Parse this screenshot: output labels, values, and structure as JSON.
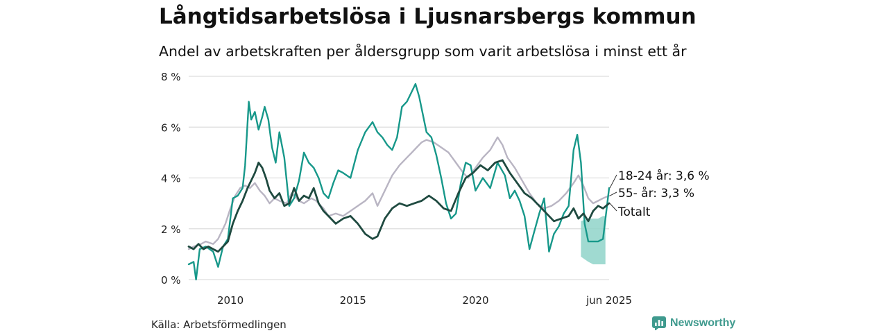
{
  "title": "Långtidsarbetslösa i Ljusnarsbergs kommun",
  "subtitle": "Andel av arbetskraften per åldersgrupp som varit arbetslösa i minst ett år",
  "source": "Källa: Arbetsförmedlingen",
  "brand": {
    "name": "Newsworthy"
  },
  "colors": {
    "youth": "#17988a",
    "total": "#1f4a40",
    "older": "#b9b5c3",
    "band": "#8fd3c9",
    "grid": "#dddddd"
  },
  "chart_data": {
    "type": "line",
    "xlim": [
      2008.3,
      2025.45
    ],
    "ylim": [
      0,
      8
    ],
    "y_ticks": [
      0,
      2,
      4,
      6,
      8
    ],
    "y_tick_labels": [
      "0 %",
      "2 %",
      "4 %",
      "6 %",
      "8 %"
    ],
    "x_ticks": [
      2010,
      2015,
      2020,
      2025.45
    ],
    "x_tick_labels": [
      "2010",
      "2015",
      "2020",
      "jun 2025"
    ],
    "grid": true,
    "series": [
      {
        "key": "older",
        "end_label": "55- år: 3,3 %",
        "x": [
          2008.3,
          2008.5,
          2008.8,
          2009.0,
          2009.3,
          2009.5,
          2009.8,
          2010.0,
          2010.2,
          2010.4,
          2010.6,
          2010.8,
          2011.0,
          2011.2,
          2011.4,
          2011.6,
          2011.8,
          2012.0,
          2012.3,
          2012.5,
          2012.8,
          2013.0,
          2013.3,
          2013.5,
          2013.8,
          2014.0,
          2014.3,
          2014.6,
          2014.9,
          2015.2,
          2015.5,
          2015.8,
          2016.0,
          2016.3,
          2016.6,
          2016.9,
          2017.2,
          2017.4,
          2017.6,
          2017.8,
          2018.0,
          2018.3,
          2018.6,
          2018.9,
          2019.2,
          2019.5,
          2019.7,
          2020.0,
          2020.3,
          2020.6,
          2020.9,
          2021.1,
          2021.3,
          2021.6,
          2021.9,
          2022.2,
          2022.5,
          2022.8,
          2023.1,
          2023.4,
          2023.7,
          2024.0,
          2024.2,
          2024.4,
          2024.6,
          2024.8,
          2025.0,
          2025.2,
          2025.45
        ],
        "y": [
          1.2,
          1.3,
          1.4,
          1.5,
          1.4,
          1.6,
          2.2,
          2.8,
          3.3,
          3.6,
          3.7,
          3.6,
          3.8,
          3.5,
          3.3,
          3.0,
          3.2,
          3.1,
          3.0,
          3.4,
          3.1,
          3.0,
          3.2,
          3.1,
          2.8,
          2.5,
          2.6,
          2.5,
          2.7,
          2.9,
          3.1,
          3.4,
          2.9,
          3.5,
          4.1,
          4.5,
          4.8,
          5.0,
          5.2,
          5.4,
          5.5,
          5.4,
          5.2,
          5.0,
          4.6,
          4.2,
          4.0,
          4.4,
          4.8,
          5.1,
          5.6,
          5.3,
          4.8,
          4.4,
          3.9,
          3.4,
          3.0,
          2.8,
          2.9,
          3.1,
          3.4,
          3.8,
          4.1,
          3.7,
          3.2,
          3.0,
          3.1,
          3.2,
          3.3
        ]
      },
      {
        "key": "youth",
        "end_label": "18-24 år: 3,6 %",
        "x": [
          2008.3,
          2008.5,
          2008.6,
          2008.75,
          2009.0,
          2009.3,
          2009.5,
          2009.7,
          2009.9,
          2010.1,
          2010.3,
          2010.5,
          2010.6,
          2010.75,
          2010.85,
          2011.0,
          2011.15,
          2011.3,
          2011.4,
          2011.55,
          2011.7,
          2011.85,
          2012.0,
          2012.2,
          2012.4,
          2012.6,
          2012.8,
          2013.0,
          2013.2,
          2013.4,
          2013.6,
          2013.8,
          2014.0,
          2014.2,
          2014.4,
          2014.6,
          2014.9,
          2015.2,
          2015.5,
          2015.8,
          2016.0,
          2016.2,
          2016.4,
          2016.6,
          2016.8,
          2017.0,
          2017.2,
          2017.4,
          2017.55,
          2017.7,
          2017.85,
          2018.0,
          2018.2,
          2018.4,
          2018.6,
          2018.8,
          2019.0,
          2019.2,
          2019.4,
          2019.6,
          2019.8,
          2020.0,
          2020.3,
          2020.6,
          2020.9,
          2021.2,
          2021.4,
          2021.6,
          2021.8,
          2022.0,
          2022.2,
          2022.4,
          2022.6,
          2022.8,
          2023.0,
          2023.2,
          2023.4,
          2023.6,
          2023.8,
          2024.0,
          2024.15,
          2024.3,
          2024.45,
          2024.6,
          2024.8,
          2025.0,
          2025.2,
          2025.35,
          2025.45
        ],
        "y": [
          0.6,
          0.7,
          0.0,
          1.2,
          1.3,
          1.1,
          0.5,
          1.3,
          1.6,
          3.2,
          3.3,
          3.6,
          4.5,
          7.0,
          6.3,
          6.6,
          5.9,
          6.4,
          6.8,
          6.3,
          5.2,
          4.6,
          5.8,
          4.8,
          2.9,
          3.2,
          3.9,
          5.0,
          4.6,
          4.4,
          4.0,
          3.4,
          3.2,
          3.8,
          4.3,
          4.2,
          4.0,
          5.1,
          5.8,
          6.2,
          5.8,
          5.6,
          5.3,
          5.1,
          5.6,
          6.8,
          7.0,
          7.4,
          7.7,
          7.2,
          6.5,
          5.8,
          5.6,
          4.9,
          4.0,
          3.0,
          2.4,
          2.6,
          3.8,
          4.6,
          4.5,
          3.5,
          4.0,
          3.6,
          4.6,
          4.1,
          3.2,
          3.5,
          3.1,
          2.5,
          1.2,
          1.9,
          2.6,
          3.2,
          1.1,
          1.8,
          2.1,
          2.6,
          2.9,
          5.1,
          5.7,
          4.6,
          2.2,
          1.5,
          1.5,
          1.5,
          1.6,
          2.8,
          3.6
        ]
      },
      {
        "key": "total",
        "end_label": "Totalt",
        "x": [
          2008.3,
          2008.5,
          2008.7,
          2008.9,
          2009.1,
          2009.3,
          2009.5,
          2009.7,
          2009.9,
          2010.1,
          2010.3,
          2010.5,
          2010.7,
          2010.85,
          2011.0,
          2011.15,
          2011.3,
          2011.45,
          2011.6,
          2011.8,
          2012.0,
          2012.2,
          2012.4,
          2012.6,
          2012.8,
          2013.0,
          2013.2,
          2013.4,
          2013.6,
          2013.8,
          2014.0,
          2014.3,
          2014.6,
          2014.9,
          2015.2,
          2015.5,
          2015.8,
          2016.0,
          2016.3,
          2016.6,
          2016.9,
          2017.2,
          2017.5,
          2017.8,
          2018.1,
          2018.4,
          2018.7,
          2019.0,
          2019.3,
          2019.6,
          2019.9,
          2020.2,
          2020.5,
          2020.8,
          2021.1,
          2021.4,
          2021.7,
          2022.0,
          2022.3,
          2022.6,
          2022.9,
          2023.2,
          2023.5,
          2023.8,
          2024.0,
          2024.2,
          2024.4,
          2024.6,
          2024.8,
          2025.0,
          2025.2,
          2025.45
        ],
        "y": [
          1.3,
          1.2,
          1.4,
          1.2,
          1.3,
          1.2,
          1.1,
          1.3,
          1.5,
          2.2,
          2.7,
          3.1,
          3.6,
          3.9,
          4.2,
          4.6,
          4.4,
          4.0,
          3.5,
          3.2,
          3.4,
          2.9,
          3.0,
          3.6,
          3.1,
          3.3,
          3.2,
          3.6,
          3.0,
          2.7,
          2.5,
          2.2,
          2.4,
          2.5,
          2.2,
          1.8,
          1.6,
          1.7,
          2.4,
          2.8,
          3.0,
          2.9,
          3.0,
          3.1,
          3.3,
          3.1,
          2.8,
          2.7,
          3.4,
          4.0,
          4.2,
          4.5,
          4.3,
          4.6,
          4.7,
          4.2,
          3.8,
          3.4,
          3.2,
          2.9,
          2.6,
          2.3,
          2.4,
          2.5,
          2.8,
          2.4,
          2.6,
          2.3,
          2.7,
          2.9,
          2.8,
          3.0
        ]
      }
    ],
    "band": {
      "x": [
        2024.3,
        2024.6,
        2024.8,
        2025.0,
        2025.2,
        2025.3
      ],
      "lower": [
        0.9,
        0.7,
        0.6,
        0.6,
        0.6,
        0.6
      ],
      "upper": [
        2.3,
        2.4,
        2.4,
        2.4,
        2.5,
        2.5
      ]
    }
  }
}
